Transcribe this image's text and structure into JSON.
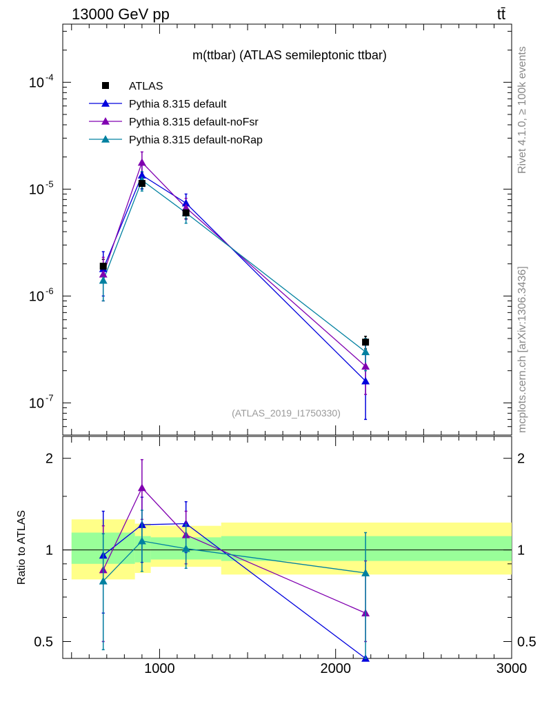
{
  "header": {
    "left": "13000 GeV pp",
    "right": "tt̄"
  },
  "side_labels": {
    "rivet": "Rivet 4.1.0, ≥ 100k events",
    "mcplots": "mcplots.cern.ch [arXiv:1306.3436]"
  },
  "colors": {
    "atlas": "#000000",
    "default": "#0000dd",
    "noFsr": "#8000b0",
    "noRap": "#0080a0",
    "band_inner": "#99ff99",
    "band_outer": "#ffff88"
  },
  "chart_data": [
    {
      "type": "scatter",
      "title": "m(ttbar) (ATLAS semileptonic ttbar)",
      "watermark": "(ATLAS_2019_I1750330)",
      "yscale": "log",
      "xlim": [
        450,
        3000
      ],
      "ylim": [
        5e-08,
        0.00035
      ],
      "y_ticks": [
        {
          "value": 1e-07,
          "label": "10",
          "exp": "-7"
        },
        {
          "value": 1e-06,
          "label": "10",
          "exp": "-6"
        },
        {
          "value": 1e-05,
          "label": "10",
          "exp": "-5"
        },
        {
          "value": 0.0001,
          "label": "10",
          "exp": "-4"
        }
      ],
      "legend": [
        {
          "name": "ATLAS",
          "marker": "square",
          "color": "#000000"
        },
        {
          "name": "Pythia 8.315 default",
          "marker": "triangle",
          "color": "#0000dd"
        },
        {
          "name": "Pythia 8.315 default-noFsr",
          "marker": "triangle",
          "color": "#8000b0"
        },
        {
          "name": "Pythia 8.315 default-noRap",
          "marker": "triangle",
          "color": "#0080a0"
        }
      ],
      "series": [
        {
          "name": "ATLAS",
          "color": "#000000",
          "marker": "square",
          "line": false,
          "x": [
            680,
            900,
            1150,
            2170
          ],
          "y": [
            1.9e-06,
            1.13e-05,
            6e-06,
            3.7e-07
          ],
          "yerr_lo": [
            3e-07,
            1.2e-06,
            7e-07,
            5e-08
          ],
          "yerr_hi": [
            3e-07,
            1.2e-06,
            7e-07,
            5e-08
          ]
        },
        {
          "name": "Pythia 8.315 default",
          "color": "#0000dd",
          "marker": "triangle",
          "line": true,
          "x": [
            680,
            900,
            1150,
            2170
          ],
          "y": [
            1.8e-06,
            1.35e-05,
            7.4e-06,
            1.6e-07
          ],
          "yerr_lo": [
            8e-07,
            3.5e-06,
            1.6e-06,
            9e-08
          ],
          "yerr_hi": [
            8e-07,
            4e-06,
            1.6e-06,
            1.4e-07
          ]
        },
        {
          "name": "Pythia 8.315 default-noFsr",
          "color": "#8000b0",
          "marker": "triangle",
          "line": true,
          "x": [
            680,
            900,
            1150,
            2170
          ],
          "y": [
            1.6e-06,
            1.78e-05,
            6.7e-06,
            2.2e-07
          ],
          "yerr_lo": [
            7e-07,
            3.5e-06,
            1.5e-06,
            1e-07
          ],
          "yerr_hi": [
            7e-07,
            4.5e-06,
            1.5e-06,
            1.3e-07
          ]
        },
        {
          "name": "Pythia 8.315 default-noRap",
          "color": "#0080a0",
          "marker": "triangle",
          "line": true,
          "x": [
            680,
            900,
            1150,
            2170
          ],
          "y": [
            1.4e-06,
            1.21e-05,
            6e-06,
            3e-07
          ],
          "yerr_lo": [
            5e-07,
            2.5e-06,
            1.2e-06,
            1e-07
          ],
          "yerr_hi": [
            5e-07,
            2.5e-06,
            1.2e-06,
            1e-07
          ]
        }
      ]
    },
    {
      "type": "scatter",
      "ylabel": "Ratio to ATLAS",
      "yscale": "log",
      "xlim": [
        450,
        3000
      ],
      "ylim": [
        0.44,
        2.36
      ],
      "x_ticks": [
        1000,
        2000,
        3000
      ],
      "y_ticks": [
        0.5,
        1,
        2
      ],
      "reference": 1,
      "bands": [
        {
          "x0": 500,
          "x1": 640,
          "inner": [
            0.9,
            1.14
          ],
          "outer": [
            0.8,
            1.26
          ]
        },
        {
          "x0": 640,
          "x1": 860,
          "inner": [
            0.9,
            1.14
          ],
          "outer": [
            0.8,
            1.26
          ]
        },
        {
          "x0": 860,
          "x1": 950,
          "inner": [
            0.91,
            1.11
          ],
          "outer": [
            0.84,
            1.22
          ]
        },
        {
          "x0": 950,
          "x1": 1350,
          "inner": [
            0.93,
            1.1
          ],
          "outer": [
            0.88,
            1.2
          ]
        },
        {
          "x0": 1350,
          "x1": 3000,
          "inner": [
            0.92,
            1.11
          ],
          "outer": [
            0.83,
            1.23
          ]
        }
      ],
      "series": [
        {
          "name": "Pythia 8.315 default",
          "color": "#0000dd",
          "x": [
            680,
            900,
            1150,
            2170
          ],
          "y": [
            0.96,
            1.21,
            1.22,
            0.41
          ],
          "yerr_lo": [
            0.34,
            0.3,
            0.24,
            0.0
          ],
          "yerr_hi": [
            0.38,
            0.28,
            0.22,
            0.0
          ]
        },
        {
          "name": "Pythia 8.315 default-noFsr",
          "color": "#8000b0",
          "x": [
            680,
            900,
            1150,
            2170
          ],
          "y": [
            0.86,
            1.6,
            1.12,
            0.62
          ],
          "yerr_lo": [
            0.36,
            0.34,
            0.22,
            0.12
          ],
          "yerr_hi": [
            0.34,
            0.38,
            0.22,
            0.3
          ]
        },
        {
          "name": "Pythia 8.315 default-noRap",
          "color": "#0080a0",
          "x": [
            680,
            900,
            1150,
            2170
          ],
          "y": [
            0.79,
            1.07,
            1.01,
            0.84
          ],
          "yerr_lo": [
            0.32,
            0.22,
            0.14,
            0.42
          ],
          "yerr_hi": [
            0.34,
            0.28,
            0.2,
            0.3
          ]
        }
      ]
    }
  ]
}
